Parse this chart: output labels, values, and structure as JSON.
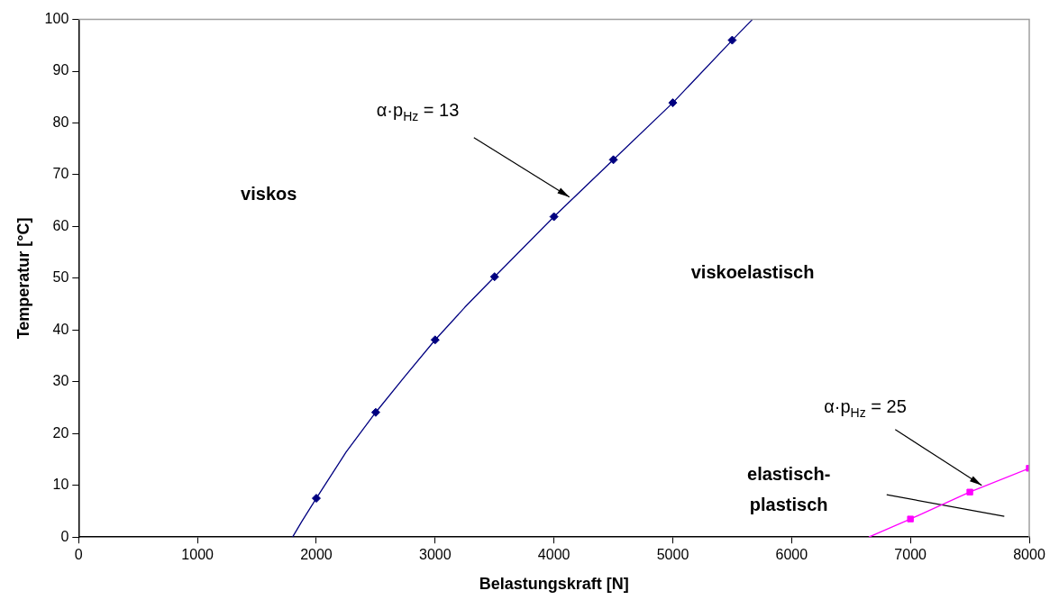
{
  "chart_data": {
    "type": "line",
    "xlabel": "Belastungskraft [N]",
    "ylabel": "Temperatur [°C]",
    "xlim": [
      0,
      8000
    ],
    "xticks": [
      0,
      1000,
      2000,
      3000,
      4000,
      5000,
      6000,
      7000,
      8000
    ],
    "ylim": [
      0,
      100
    ],
    "yticks": [
      0,
      10,
      20,
      30,
      40,
      50,
      60,
      70,
      80,
      90,
      100
    ],
    "grid": false,
    "series": [
      {
        "color": "#000080",
        "marker": "none",
        "line_style": "solid",
        "x": [
          1800,
          1880,
          2000,
          2250,
          2500,
          2740,
          3000,
          3250,
          3500,
          4000,
          4500,
          5000,
          5500,
          5670
        ],
        "values": [
          0,
          3.1,
          7.5,
          16.4,
          24.1,
          30.9,
          38.1,
          44.4,
          50.3,
          61.9,
          72.9,
          83.9,
          96,
          100
        ]
      },
      {
        "type": "scatter",
        "color": "#000080",
        "marker": "diamond",
        "x": [
          2000,
          2500,
          3000,
          3500,
          4000,
          4500,
          5000,
          5500
        ],
        "values": [
          7.5,
          24.1,
          38.1,
          50.3,
          61.9,
          72.9,
          83.9,
          96
        ]
      },
      {
        "color": "#ff00ff",
        "marker": "none",
        "line_style": "solid",
        "x": [
          6650,
          7000,
          7500,
          8000
        ],
        "values": [
          0,
          3.5,
          8.7,
          13.3
        ]
      },
      {
        "type": "scatter",
        "color": "#ff00ff",
        "marker": "square",
        "x": [
          7000,
          7500,
          8000
        ],
        "values": [
          3.5,
          8.7,
          13.3
        ]
      },
      {
        "type": "line",
        "color": "#000000",
        "marker": "none",
        "line_style": "solid",
        "x": [
          6800,
          7790
        ],
        "values": [
          8.2,
          4
        ]
      }
    ],
    "annotations": [
      {
        "text": "α·p$_{Hz}$ = 13",
        "x": 4130,
        "y": 65.7
      },
      {
        "text": "α·p$_{Hz}$ = 25",
        "x": 7600,
        "y": 10
      },
      "elastisch-plastisch",
      "viskos",
      "viskoelastisch"
    ]
  }
}
